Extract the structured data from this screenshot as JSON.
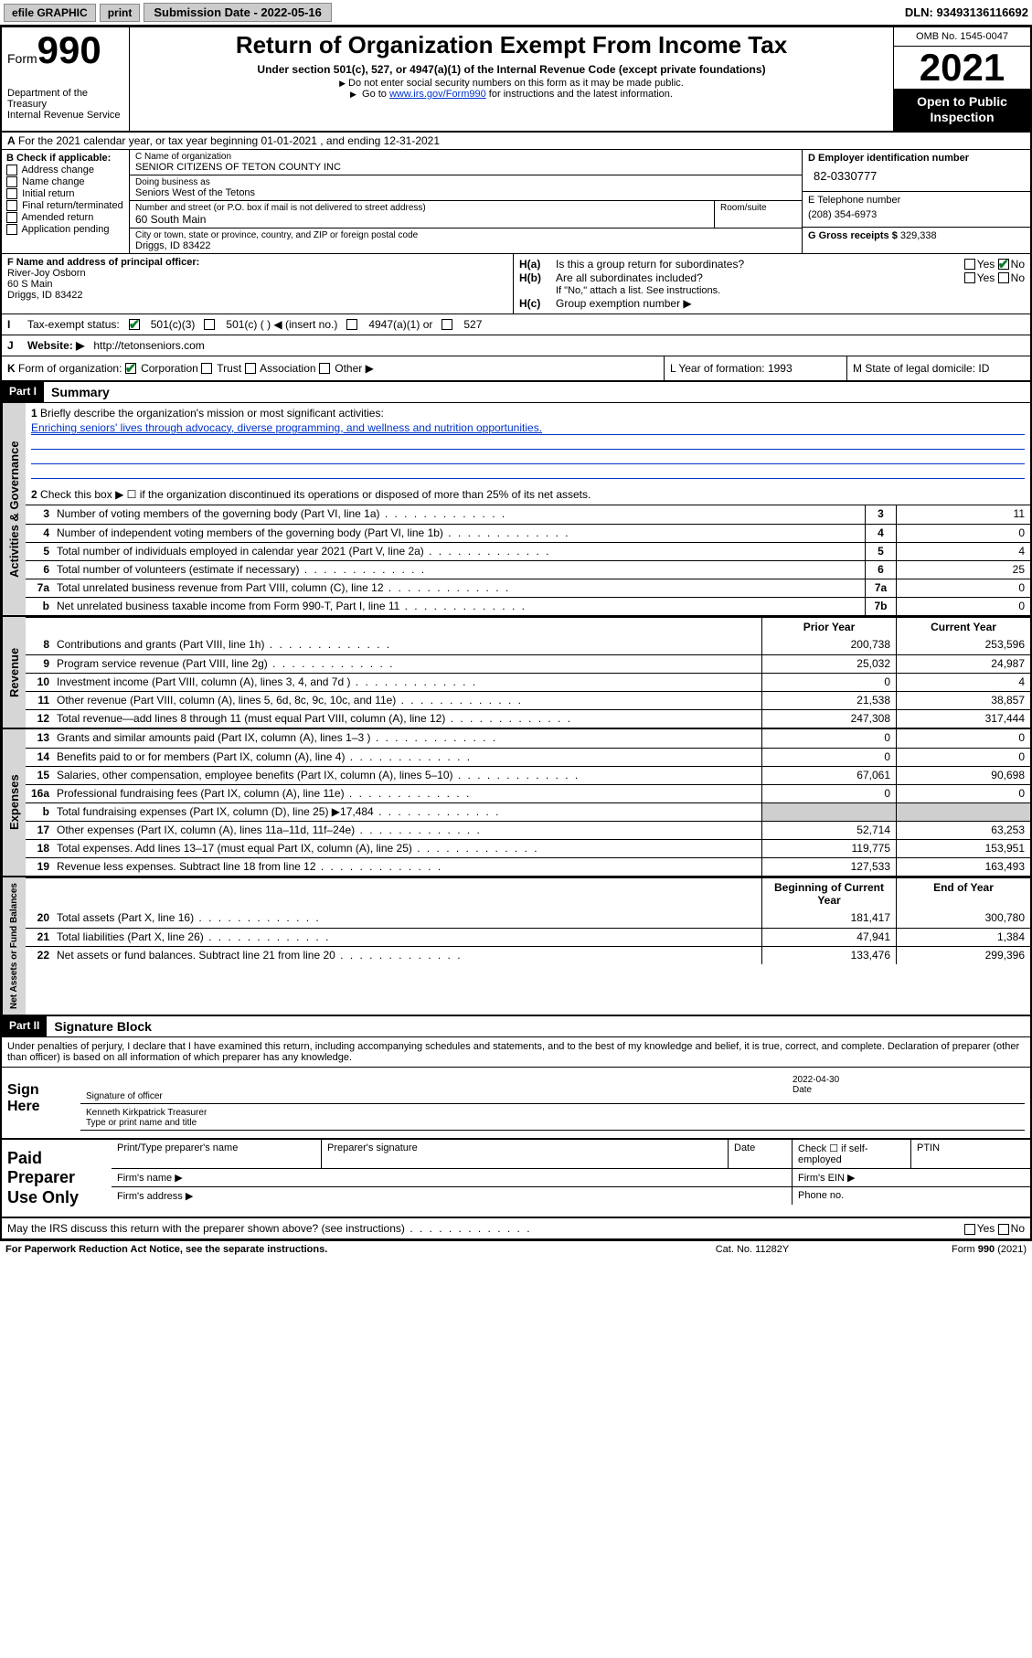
{
  "topbar": {
    "efile_label": "efile GRAPHIC",
    "print_label": "print",
    "submission_label": "Submission Date - 2022-05-16",
    "dln": "DLN: 93493136116692"
  },
  "header": {
    "form_label": "Form",
    "form_number": "990",
    "dept": "Department of the Treasury",
    "irs": "Internal Revenue Service",
    "title": "Return of Organization Exempt From Income Tax",
    "subtitle": "Under section 501(c), 527, or 4947(a)(1) of the Internal Revenue Code (except private foundations)",
    "hint1": "Do not enter social security numbers on this form as it may be made public.",
    "hint2_pre": "Go to ",
    "hint2_link": "www.irs.gov/Form990",
    "hint2_post": " for instructions and the latest information.",
    "omb": "OMB No. 1545-0047",
    "year": "2021",
    "open_public": "Open to Public Inspection"
  },
  "rowA": {
    "text": "For the 2021 calendar year, or tax year beginning 01-01-2021   , and ending 12-31-2021",
    "prefix": "A"
  },
  "colB": {
    "heading": "B Check if applicable:",
    "opts": [
      "Address change",
      "Name change",
      "Initial return",
      "Final return/terminated",
      "Amended return",
      "Application pending"
    ]
  },
  "colC": {
    "name_label": "C Name of organization",
    "name": "SENIOR CITIZENS OF TETON COUNTY INC",
    "dba_label": "Doing business as",
    "dba": "Seniors West of the Tetons",
    "street_label": "Number and street (or P.O. box if mail is not delivered to street address)",
    "room_label": "Room/suite",
    "street": "60 South Main",
    "city_label": "City or town, state or province, country, and ZIP or foreign postal code",
    "city": "Driggs, ID  83422"
  },
  "colD": {
    "ein_label": "D Employer identification number",
    "ein": "82-0330777",
    "phone_label": "E Telephone number",
    "phone": "(208) 354-6973",
    "gross_label": "G Gross receipts $",
    "gross": "329,338"
  },
  "rowF": {
    "label": "F  Name and address of principal officer:",
    "name": "River-Joy Osborn",
    "addr1": "60 S Main",
    "addr2": "Driggs, ID  83422"
  },
  "rowH": {
    "a_label": "H(a)",
    "a_text": "Is this a group return for subordinates?",
    "b_label": "H(b)",
    "b_text": "Are all subordinates included?",
    "b_note": "If \"No,\" attach a list. See instructions.",
    "c_label": "H(c)",
    "c_text": "Group exemption number ▶",
    "yes": "Yes",
    "no": "No"
  },
  "rowI": {
    "label": "I",
    "text": "Tax-exempt status:",
    "o1": "501(c)(3)",
    "o2": "501(c) (  ) ◀ (insert no.)",
    "o3": "4947(a)(1) or",
    "o4": "527"
  },
  "rowJ": {
    "label": "J",
    "text": "Website: ▶",
    "url": "http://tetonseniors.com"
  },
  "rowK": {
    "label": "K",
    "text": "Form of organization:",
    "o1": "Corporation",
    "o2": "Trust",
    "o3": "Association",
    "o4": "Other ▶"
  },
  "rowL": {
    "text": "L Year of formation: 1993"
  },
  "rowM": {
    "text": "M State of legal domicile: ID"
  },
  "part1": {
    "label": "Part I",
    "title": "Summary",
    "q1_label": "1",
    "q1": "Briefly describe the organization's mission or most significant activities:",
    "mission": "Enriching seniors' lives through advocacy, diverse programming, and wellness and nutrition opportunities.",
    "q2_label": "2",
    "q2": "Check this box ▶ ☐  if the organization discontinued its operations or disposed of more than 25% of its net assets."
  },
  "gov_lines": [
    {
      "no": "3",
      "txt": "Number of voting members of the governing body (Part VI, line 1a)",
      "box": "3",
      "val": "11"
    },
    {
      "no": "4",
      "txt": "Number of independent voting members of the governing body (Part VI, line 1b)",
      "box": "4",
      "val": "0"
    },
    {
      "no": "5",
      "txt": "Total number of individuals employed in calendar year 2021 (Part V, line 2a)",
      "box": "5",
      "val": "4"
    },
    {
      "no": "6",
      "txt": "Total number of volunteers (estimate if necessary)",
      "box": "6",
      "val": "25"
    },
    {
      "no": "7a",
      "txt": "Total unrelated business revenue from Part VIII, column (C), line 12",
      "box": "7a",
      "val": "0"
    },
    {
      "no": "b",
      "txt": "Net unrelated business taxable income from Form 990-T, Part I, line 11",
      "box": "7b",
      "val": "0"
    }
  ],
  "rev_hdr": {
    "prior": "Prior Year",
    "curr": "Current Year"
  },
  "rev_lines": [
    {
      "no": "8",
      "txt": "Contributions and grants (Part VIII, line 1h)",
      "p": "200,738",
      "c": "253,596"
    },
    {
      "no": "9",
      "txt": "Program service revenue (Part VIII, line 2g)",
      "p": "25,032",
      "c": "24,987"
    },
    {
      "no": "10",
      "txt": "Investment income (Part VIII, column (A), lines 3, 4, and 7d )",
      "p": "0",
      "c": "4"
    },
    {
      "no": "11",
      "txt": "Other revenue (Part VIII, column (A), lines 5, 6d, 8c, 9c, 10c, and 11e)",
      "p": "21,538",
      "c": "38,857"
    },
    {
      "no": "12",
      "txt": "Total revenue—add lines 8 through 11 (must equal Part VIII, column (A), line 12)",
      "p": "247,308",
      "c": "317,444"
    }
  ],
  "exp_lines": [
    {
      "no": "13",
      "txt": "Grants and similar amounts paid (Part IX, column (A), lines 1–3 )",
      "p": "0",
      "c": "0"
    },
    {
      "no": "14",
      "txt": "Benefits paid to or for members (Part IX, column (A), line 4)",
      "p": "0",
      "c": "0"
    },
    {
      "no": "15",
      "txt": "Salaries, other compensation, employee benefits (Part IX, column (A), lines 5–10)",
      "p": "67,061",
      "c": "90,698"
    },
    {
      "no": "16a",
      "txt": "Professional fundraising fees (Part IX, column (A), line 11e)",
      "p": "0",
      "c": "0"
    },
    {
      "no": "b",
      "txt": "Total fundraising expenses (Part IX, column (D), line 25) ▶17,484",
      "p": "",
      "c": "",
      "shade": true
    },
    {
      "no": "17",
      "txt": "Other expenses (Part IX, column (A), lines 11a–11d, 11f–24e)",
      "p": "52,714",
      "c": "63,253"
    },
    {
      "no": "18",
      "txt": "Total expenses. Add lines 13–17 (must equal Part IX, column (A), line 25)",
      "p": "119,775",
      "c": "153,951"
    },
    {
      "no": "19",
      "txt": "Revenue less expenses. Subtract line 18 from line 12",
      "p": "127,533",
      "c": "163,493"
    }
  ],
  "na_hdr": {
    "begin": "Beginning of Current Year",
    "end": "End of Year"
  },
  "na_lines": [
    {
      "no": "20",
      "txt": "Total assets (Part X, line 16)",
      "p": "181,417",
      "c": "300,780"
    },
    {
      "no": "21",
      "txt": "Total liabilities (Part X, line 26)",
      "p": "47,941",
      "c": "1,384"
    },
    {
      "no": "22",
      "txt": "Net assets or fund balances. Subtract line 21 from line 20",
      "p": "133,476",
      "c": "299,396"
    }
  ],
  "part2": {
    "label": "Part II",
    "title": "Signature Block"
  },
  "sig": {
    "intro": "Under penalties of perjury, I declare that I have examined this return, including accompanying schedules and statements, and to the best of my knowledge and belief, it is true, correct, and complete. Declaration of preparer (other than officer) is based on all information of which preparer has any knowledge.",
    "here": "Sign Here",
    "officer_sig": "Signature of officer",
    "date_label": "Date",
    "date": "2022-04-30",
    "officer_name": "Kenneth Kirkpatrick Treasurer",
    "name_label": "Type or print name and title"
  },
  "prep": {
    "title": "Paid Preparer Use Only",
    "name_label": "Print/Type preparer's name",
    "sig_label": "Preparer's signature",
    "date_label": "Date",
    "check_label": "Check ☐ if self-employed",
    "ptin_label": "PTIN",
    "firm_name": "Firm's name  ▶",
    "firm_ein": "Firm's EIN ▶",
    "firm_addr": "Firm's address ▶",
    "phone": "Phone no."
  },
  "footerq": {
    "text": "May the IRS discuss this return with the preparer shown above? (see instructions)",
    "yes": "Yes",
    "no": "No"
  },
  "footer": {
    "left": "For Paperwork Reduction Act Notice, see the separate instructions.",
    "mid": "Cat. No. 11282Y",
    "right": "Form 990 (2021)"
  },
  "vtabs": {
    "gov": "Activities & Governance",
    "rev": "Revenue",
    "exp": "Expenses",
    "na": "Net Assets or Fund Balances"
  }
}
